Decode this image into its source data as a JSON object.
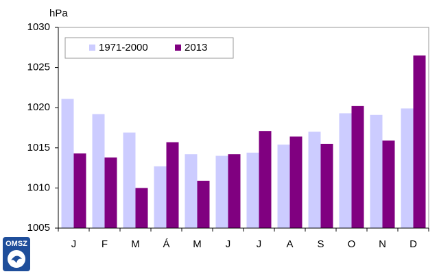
{
  "chart_data": {
    "type": "bar",
    "y_unit": "hPa",
    "categories": [
      "J",
      "F",
      "M",
      "Á",
      "M",
      "J",
      "J",
      "A",
      "S",
      "O",
      "N",
      "D"
    ],
    "series": [
      {
        "name": "1971-2000",
        "color": "#ccccff",
        "values": [
          1021.1,
          1019.2,
          1016.9,
          1012.7,
          1014.2,
          1014.0,
          1014.4,
          1015.4,
          1017.0,
          1019.3,
          1019.1,
          1019.9
        ]
      },
      {
        "name": "2013",
        "color": "#800080",
        "values": [
          1014.3,
          1013.8,
          1010.0,
          1015.7,
          1010.9,
          1014.2,
          1017.1,
          1016.4,
          1015.5,
          1020.2,
          1015.9,
          1026.5
        ]
      }
    ],
    "ylim": [
      1005,
      1030
    ],
    "yticks": [
      1005,
      1010,
      1015,
      1020,
      1025,
      1030
    ],
    "grid": false
  },
  "logo": "OMSZ"
}
